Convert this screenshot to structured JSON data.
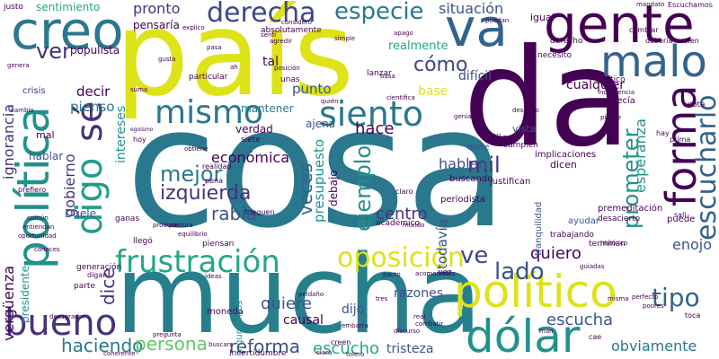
{
  "words": [
    {
      "text": "cosa",
      "color": "#2a788e",
      "vertical": false
    },
    {
      "text": "país",
      "color": "#dde318",
      "vertical": false
    },
    {
      "text": "da",
      "color": "#440154",
      "vertical": false
    },
    {
      "text": "mucha",
      "color": "#277f8e",
      "vertical": false
    },
    {
      "text": "político",
      "color": "#dde318",
      "vertical": false
    },
    {
      "text": "gente",
      "color": "#440154",
      "vertical": false
    },
    {
      "text": "creo",
      "color": "#2a788e",
      "vertical": false
    },
    {
      "text": "va",
      "color": "#33638d",
      "vertical": false
    },
    {
      "text": "política",
      "color": "#21918c",
      "vertical": true
    },
    {
      "text": "malo",
      "color": "#33638d",
      "vertical": false
    },
    {
      "text": "dólar",
      "color": "#21918c",
      "vertical": false
    },
    {
      "text": "forma",
      "color": "#440154",
      "vertical": true
    },
    {
      "text": "digo",
      "color": "#1f9e89",
      "vertical": true
    },
    {
      "text": "sé",
      "color": "#46327e",
      "vertical": true
    },
    {
      "text": "frustración",
      "color": "#22a884",
      "vertical": false
    },
    {
      "text": "bueno",
      "color": "#46327e",
      "vertical": false
    },
    {
      "text": "mismo",
      "color": "#2a788e",
      "vertical": false
    },
    {
      "text": "siento",
      "color": "#2a788e",
      "vertical": false
    },
    {
      "text": "derecha",
      "color": "#414487",
      "vertical": false
    },
    {
      "text": "especie",
      "color": "#2a788e",
      "vertical": false
    },
    {
      "text": "oposición",
      "color": "#dde318",
      "vertical": false
    },
    {
      "text": "escucharlo",
      "color": "#33638d",
      "vertical": true
    },
    {
      "text": "tipo",
      "color": "#33638d",
      "vertical": false
    },
    {
      "text": "lado",
      "color": "#3b528b",
      "vertical": false
    },
    {
      "text": "ve",
      "color": "#414487",
      "vertical": false
    },
    {
      "text": "prometer",
      "color": "#21918c",
      "vertical": true
    },
    {
      "text": "ver",
      "color": "#46327e",
      "vertical": false
    },
    {
      "text": "cómo",
      "color": "#414487",
      "vertical": false
    },
    {
      "text": "mejor",
      "color": "#2a788e",
      "vertical": false
    },
    {
      "text": "mil",
      "color": "#46327e",
      "vertical": false
    },
    {
      "text": "izquierda",
      "color": "#46327e",
      "vertical": false
    },
    {
      "text": "haciendo",
      "color": "#2a788e",
      "vertical": false
    },
    {
      "text": "persona",
      "color": "#5ec962",
      "vertical": false
    },
    {
      "text": "reforma",
      "color": "#3b528b",
      "vertical": false
    },
    {
      "text": "escucho",
      "color": "#22a884",
      "vertical": false
    },
    {
      "text": "escucha",
      "color": "#3b528b",
      "vertical": false
    },
    {
      "text": "obviamente",
      "color": "#2a788e",
      "vertical": false
    },
    {
      "text": "ejemplo",
      "color": "#21918c",
      "vertical": true
    },
    {
      "text": "rabia",
      "color": "#3b528b",
      "vertical": false
    },
    {
      "text": "centro",
      "color": "#46327e",
      "vertical": false
    },
    {
      "text": "quiero",
      "color": "#440154",
      "vertical": false
    },
    {
      "text": "enojo",
      "color": "#3b528b",
      "vertical": false
    },
    {
      "text": "dice",
      "color": "#46327e",
      "vertical": true
    },
    {
      "text": "quiere",
      "color": "#3b528b",
      "vertical": false
    },
    {
      "text": "tristeza",
      "color": "#3b528b",
      "vertical": false
    },
    {
      "text": "razones",
      "color": "#3b528b",
      "vertical": false
    },
    {
      "text": "dijo",
      "color": "#3b528b",
      "vertical": false
    },
    {
      "text": "causal",
      "color": "#440154",
      "vertical": false
    },
    {
      "text": "hace",
      "color": "#440154",
      "vertical": false
    },
    {
      "text": "hablan",
      "color": "#3b528b",
      "vertical": false
    },
    {
      "text": "veces",
      "color": "#33638d",
      "vertical": true
    },
    {
      "text": "presupuesto",
      "color": "#21918c",
      "vertical": true
    },
    {
      "text": "económica",
      "color": "#440154",
      "vertical": false
    },
    {
      "text": "gobierno",
      "color": "#46327e",
      "vertical": true
    },
    {
      "text": "vergüenza",
      "color": "#440154",
      "vertical": true
    },
    {
      "text": "ignorancia",
      "color": "#46327e",
      "vertical": true
    },
    {
      "text": "presidente",
      "color": "#21918c",
      "vertical": true
    },
    {
      "text": "pronto",
      "color": "#46327e",
      "vertical": false
    },
    {
      "text": "decir",
      "color": "#440154",
      "vertical": false
    },
    {
      "text": "pienso",
      "color": "#2a788e",
      "vertical": false
    },
    {
      "text": "punto",
      "color": "#3b528b",
      "vertical": false
    },
    {
      "text": "tal",
      "color": "#440154",
      "vertical": false
    },
    {
      "text": "situación",
      "color": "#3b528b",
      "vertical": false
    },
    {
      "text": "base",
      "color": "#dde318",
      "vertical": false
    },
    {
      "text": "cualquier",
      "color": "#440154",
      "vertical": false
    },
    {
      "text": "difícil",
      "color": "#3b528b",
      "vertical": false
    },
    {
      "text": "realmente",
      "color": "#22a884",
      "vertical": false
    },
    {
      "text": "esperanza",
      "color": "#21918c",
      "vertical": true
    },
    {
      "text": "todavía",
      "color": "#3b528b",
      "vertical": true
    },
    {
      "text": "sentimiento",
      "color": "#22a884",
      "vertical": false
    },
    {
      "text": "verdad",
      "color": "#440154",
      "vertical": false
    },
    {
      "text": "ajena",
      "color": "#3b528b",
      "vertical": false
    },
    {
      "text": "intereses",
      "color": "#21918c",
      "vertical": true
    },
    {
      "text": "populista",
      "color": "#440154",
      "vertical": false
    },
    {
      "text": "mantener",
      "color": "#2a788e",
      "vertical": false
    },
    {
      "text": "pensaría",
      "color": "#440154",
      "vertical": false
    },
    {
      "text": "hablar",
      "color": "#3b528b",
      "vertical": false
    },
    {
      "text": "Duele",
      "color": "#3b528b",
      "vertical": false
    },
    {
      "text": "mal",
      "color": "#440154",
      "vertical": false
    },
    {
      "text": "crisis",
      "color": "#46327e",
      "vertical": false
    },
    {
      "text": "diste",
      "color": "#3b528b",
      "vertical": false
    },
    {
      "text": "dije",
      "color": "#440154",
      "vertical": false
    },
    {
      "text": "vista",
      "color": "#3b528b",
      "vertical": false
    },
    {
      "text": "buscando",
      "color": "#440154",
      "vertical": false
    },
    {
      "text": "periodista",
      "color": "#440154",
      "vertical": false
    },
    {
      "text": "justifican",
      "color": "#440154",
      "vertical": false
    },
    {
      "text": "implicaciones",
      "color": "#440154",
      "vertical": false
    },
    {
      "text": "cumplen",
      "color": "#440154",
      "vertical": false
    },
    {
      "text": "ayudar",
      "color": "#3b528b",
      "vertical": false
    },
    {
      "text": "trabajando",
      "color": "#440154",
      "vertical": false
    },
    {
      "text": "terminan",
      "color": "#440154",
      "vertical": false
    },
    {
      "text": "premeditación",
      "color": "#440154",
      "vertical": false
    },
    {
      "text": "desacierto",
      "color": "#440154",
      "vertical": false
    },
    {
      "text": "tranquilidad",
      "color": "#3b528b",
      "vertical": true
    },
    {
      "text": "puede",
      "color": "#440154",
      "vertical": false
    },
    {
      "text": "necesito",
      "color": "#440154",
      "vertical": false
    },
    {
      "text": "crítico",
      "color": "#440154",
      "vertical": false
    },
    {
      "text": "decía",
      "color": "#440154",
      "vertical": false
    },
    {
      "text": "cota",
      "color": "#440154",
      "vertical": false
    },
    {
      "text": "lanzar",
      "color": "#440154",
      "vertical": false
    },
    {
      "text": "unas",
      "color": "#440154",
      "vertical": false
    },
    {
      "text": "siete",
      "color": "#440154",
      "vertical": false
    },
    {
      "text": "particular",
      "color": "#440154",
      "vertical": false
    },
    {
      "text": "absolutamente",
      "color": "#440154",
      "vertical": false
    },
    {
      "text": "debajo",
      "color": "#440154",
      "vertical": true
    },
    {
      "text": "dicen",
      "color": "#440154",
      "vertical": false
    },
    {
      "text": "académico",
      "color": "#440154",
      "vertical": false
    },
    {
      "text": "llegó",
      "color": "#440154",
      "vertical": false
    },
    {
      "text": "piensan",
      "color": "#440154",
      "vertical": false
    },
    {
      "text": "argumentos",
      "color": "#21918c",
      "vertical": true
    },
    {
      "text": "moneda",
      "color": "#440154",
      "vertical": false
    },
    {
      "text": "ganas",
      "color": "#440154",
      "vertical": false
    },
    {
      "text": "generación",
      "color": "#440154",
      "vertical": false
    },
    {
      "text": "parte",
      "color": "#440154",
      "vertical": false
    },
    {
      "text": "igual",
      "color": "#440154",
      "vertical": false
    },
    {
      "text": "justo",
      "color": "#440154",
      "vertical": false
    },
    {
      "text": "Escuchamos",
      "color": "#440154",
      "vertical": false
    },
    {
      "text": "cambiar",
      "color": "#440154",
      "vertical": false
    },
    {
      "text": "derecho",
      "color": "#440154",
      "vertical": false
    },
    {
      "text": "debería",
      "color": "#440154",
      "vertical": false
    },
    {
      "text": "meten",
      "color": "#440154",
      "vertical": false
    },
    {
      "text": "realidad",
      "color": "#440154",
      "vertical": false
    },
    {
      "text": "pena",
      "color": "#440154",
      "vertical": false
    },
    {
      "text": "hoy",
      "color": "#440154",
      "vertical": false
    },
    {
      "text": "vez",
      "color": "#440154",
      "vertical": false
    },
    {
      "text": "digan",
      "color": "#440154",
      "vertical": false
    },
    {
      "text": "Incertidumbre",
      "color": "#440154",
      "vertical": false
    },
    {
      "text": "creen",
      "color": "#440154",
      "vertical": false
    },
    {
      "text": "toca",
      "color": "#440154",
      "vertical": false
    },
    {
      "text": "cae",
      "color": "#440154",
      "vertical": false
    },
    {
      "text": "hay",
      "color": "#440154",
      "vertical": false
    },
    {
      "text": "prima",
      "color": "#440154",
      "vertical": false
    },
    {
      "text": "sali",
      "color": "#440154",
      "vertical": false
    },
    {
      "text": "prefiero",
      "color": "#440154",
      "vertical": false
    },
    {
      "text": "común",
      "color": "#440154",
      "vertical": false
    },
    {
      "text": "entiendan",
      "color": "#440154",
      "vertical": false
    },
    {
      "text": "oportunidad",
      "color": "#440154",
      "vertical": false
    },
    {
      "text": "conoces",
      "color": "#440154",
      "vertical": false
    },
    {
      "text": "produce",
      "color": "#440154",
      "vertical": false
    },
    {
      "text": "postura",
      "color": "#440154",
      "vertical": false
    },
    {
      "text": "equilibrio",
      "color": "#440154",
      "vertical": false
    },
    {
      "text": "frieguen",
      "color": "#440154",
      "vertical": false
    },
    {
      "text": "mundo",
      "color": "#440154",
      "vertical": false
    },
    {
      "text": "claro",
      "color": "#440154",
      "vertical": false
    },
    {
      "text": "pacto",
      "color": "#440154",
      "vertical": false
    },
    {
      "text": "acomodados",
      "color": "#440154",
      "vertical": false
    },
    {
      "text": "ideas",
      "color": "#440154",
      "vertical": false
    },
    {
      "text": "peldaño",
      "color": "#440154",
      "vertical": false
    },
    {
      "text": "tres",
      "color": "#440154",
      "vertical": false
    },
    {
      "text": "real",
      "color": "#440154",
      "vertical": false
    },
    {
      "text": "combatir",
      "color": "#440154",
      "vertical": false
    },
    {
      "text": "discurso",
      "color": "#440154",
      "vertical": false
    },
    {
      "text": "embarra",
      "color": "#440154",
      "vertical": false
    },
    {
      "text": "pregunta",
      "color": "#440154",
      "vertical": false
    },
    {
      "text": "buscan",
      "color": "#440154",
      "vertical": false
    },
    {
      "text": "coherente",
      "color": "#440154",
      "vertical": false
    },
    {
      "text": "clara",
      "color": "#440154",
      "vertical": false
    },
    {
      "text": "tolero",
      "color": "#440154",
      "vertical": false
    },
    {
      "text": "desagrador",
      "color": "#440154",
      "vertical": false
    },
    {
      "text": "man",
      "color": "#440154",
      "vertical": false
    },
    {
      "text": "cambio",
      "color": "#440154",
      "vertical": false
    },
    {
      "text": "suma",
      "color": "#440154",
      "vertical": false
    },
    {
      "text": "egoísmo",
      "color": "#440154",
      "vertical": false
    },
    {
      "text": "gusta",
      "color": "#440154",
      "vertical": false
    },
    {
      "text": "genera",
      "color": "#440154",
      "vertical": false
    },
    {
      "text": "explico",
      "color": "#440154",
      "vertical": false
    },
    {
      "text": "considero",
      "color": "#440154",
      "vertical": false
    },
    {
      "text": "senti",
      "color": "#440154",
      "vertical": false
    },
    {
      "text": "agredir",
      "color": "#440154",
      "vertical": false
    },
    {
      "text": "simple",
      "color": "#440154",
      "vertical": false
    },
    {
      "text": "apago",
      "color": "#440154",
      "vertical": false
    },
    {
      "text": "mandato",
      "color": "#440154",
      "vertical": false
    },
    {
      "text": "puedan",
      "color": "#440154",
      "vertical": false
    },
    {
      "text": "pasa",
      "color": "#440154",
      "vertical": false
    },
    {
      "text": "ah",
      "color": "#440154",
      "vertical": false
    },
    {
      "text": "posición",
      "color": "#440154",
      "vertical": false
    },
    {
      "text": "basa",
      "color": "#440154",
      "vertical": false
    },
    {
      "text": "quién",
      "color": "#440154",
      "vertical": false
    },
    {
      "text": "científica",
      "color": "#440154",
      "vertical": false
    },
    {
      "text": "desgano",
      "color": "#440154",
      "vertical": false
    },
    {
      "text": "indiferencia",
      "color": "#440154",
      "vertical": false
    },
    {
      "text": "genial",
      "color": "#440154",
      "vertical": false
    },
    {
      "text": "piense",
      "color": "#440154",
      "vertical": false
    },
    {
      "text": "obtiene",
      "color": "#440154",
      "vertical": false
    },
    {
      "text": "histórico",
      "color": "#440154",
      "vertical": false
    },
    {
      "text": "perfecto",
      "color": "#440154",
      "vertical": false
    },
    {
      "text": "poores",
      "color": "#440154",
      "vertical": false
    },
    {
      "text": "misma",
      "color": "#440154",
      "vertical": false
    },
    {
      "text": "guiadas",
      "color": "#440154",
      "vertical": false
    }
  ]
}
